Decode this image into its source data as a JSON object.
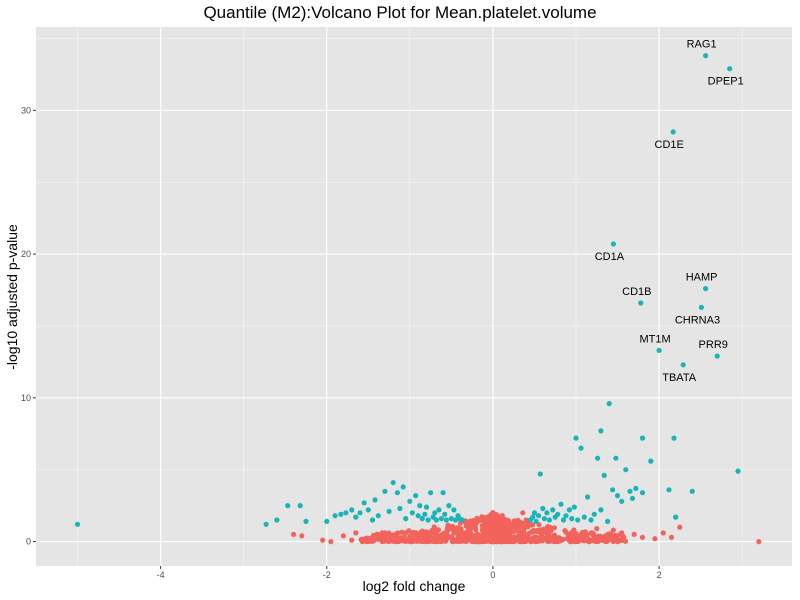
{
  "chart_data": {
    "type": "scatter",
    "title": "Quantile (M2):Volcano Plot for Mean.platelet.volume",
    "xlabel": "log2 fold change",
    "ylabel": "-log10 adjusted p-value",
    "xlim": [
      -5.5,
      3.6
    ],
    "ylim": [
      -1.7,
      35.8
    ],
    "x_ticks": [
      -4,
      -2,
      0,
      2
    ],
    "y_ticks": [
      0,
      10,
      20,
      30
    ],
    "grid": true,
    "legend": "none",
    "colors": {
      "significant": "#1ab4b8",
      "not_significant": "#f2635c",
      "panel_bg": "#e5e5e5",
      "grid": "#ffffff"
    },
    "labeled_points": [
      {
        "label": "RAG1",
        "x": 2.56,
        "y": 33.8,
        "label_pos": "above"
      },
      {
        "label": "DPEP1",
        "x": 2.85,
        "y": 32.9,
        "label_pos": "below"
      },
      {
        "label": "CD1E",
        "x": 2.17,
        "y": 28.5,
        "label_pos": "below"
      },
      {
        "label": "CD1A",
        "x": 1.45,
        "y": 20.7,
        "label_pos": "below"
      },
      {
        "label": "HAMP",
        "x": 2.56,
        "y": 17.6,
        "label_pos": "above"
      },
      {
        "label": "CD1B",
        "x": 1.78,
        "y": 16.6,
        "label_pos": "above"
      },
      {
        "label": "CHRNA3",
        "x": 2.51,
        "y": 16.3,
        "label_pos": "below"
      },
      {
        "label": "MT1M",
        "x": 2.0,
        "y": 13.3,
        "label_pos": "above"
      },
      {
        "label": "PRR9",
        "x": 2.7,
        "y": 12.9,
        "label_pos": "above"
      },
      {
        "label": "TBATA",
        "x": 2.29,
        "y": 12.3,
        "label_pos": "below"
      }
    ],
    "significant_points": [
      [
        -5.0,
        1.2
      ],
      [
        -2.73,
        1.2
      ],
      [
        -2.6,
        1.5
      ],
      [
        -2.47,
        2.5
      ],
      [
        -2.32,
        2.5
      ],
      [
        -2.25,
        1.4
      ],
      [
        -2.0,
        1.4
      ],
      [
        -1.9,
        1.8
      ],
      [
        -1.83,
        1.9
      ],
      [
        -1.77,
        2.0
      ],
      [
        -1.7,
        2.2
      ],
      [
        -1.65,
        1.7
      ],
      [
        -1.6,
        2.0
      ],
      [
        -1.55,
        2.7
      ],
      [
        -1.5,
        2.2
      ],
      [
        -1.45,
        1.5
      ],
      [
        -1.42,
        2.9
      ],
      [
        -1.38,
        1.8
      ],
      [
        -1.3,
        3.5
      ],
      [
        -1.25,
        2.1
      ],
      [
        -1.2,
        4.1
      ],
      [
        -1.15,
        3.4
      ],
      [
        -1.12,
        2.3
      ],
      [
        -1.08,
        3.8
      ],
      [
        -1.05,
        1.6
      ],
      [
        -1.0,
        2.8
      ],
      [
        -0.97,
        2.0
      ],
      [
        -0.93,
        3.2
      ],
      [
        -0.9,
        1.8
      ],
      [
        -0.88,
        2.5
      ],
      [
        -0.85,
        1.6
      ],
      [
        -0.82,
        1.9
      ],
      [
        -0.8,
        2.4
      ],
      [
        -0.78,
        1.5
      ],
      [
        -0.75,
        3.4
      ],
      [
        -0.72,
        1.7
      ],
      [
        -0.7,
        2.0
      ],
      [
        -0.68,
        1.5
      ],
      [
        -0.65,
        2.2
      ],
      [
        -0.62,
        1.6
      ],
      [
        -0.6,
        3.4
      ],
      [
        -0.58,
        1.9
      ],
      [
        -0.56,
        1.5
      ],
      [
        -0.53,
        2.5
      ],
      [
        -0.5,
        1.6
      ],
      [
        -0.47,
        2.2
      ],
      [
        -0.45,
        1.5
      ],
      [
        -0.42,
        1.8
      ],
      [
        -0.4,
        1.6
      ],
      [
        -0.37,
        1.5
      ],
      [
        0.45,
        1.5
      ],
      [
        0.48,
        1.7
      ],
      [
        0.5,
        2.0
      ],
      [
        0.52,
        1.4
      ],
      [
        0.55,
        1.8
      ],
      [
        0.57,
        4.7
      ],
      [
        0.6,
        2.3
      ],
      [
        0.62,
        1.6
      ],
      [
        0.65,
        2.0
      ],
      [
        0.68,
        1.5
      ],
      [
        0.72,
        2.2
      ],
      [
        0.75,
        1.7
      ],
      [
        0.78,
        1.9
      ],
      [
        0.82,
        2.6
      ],
      [
        0.85,
        1.5
      ],
      [
        0.88,
        1.8
      ],
      [
        0.92,
        2.2
      ],
      [
        0.95,
        1.6
      ],
      [
        0.98,
        2.4
      ],
      [
        1.02,
        1.5
      ],
      [
        1.06,
        6.5
      ],
      [
        1.1,
        1.7
      ],
      [
        1.14,
        3.1
      ],
      [
        1.18,
        1.5
      ],
      [
        1.22,
        1.9
      ],
      [
        1.26,
        5.8
      ],
      [
        1.3,
        2.2
      ],
      [
        1.34,
        4.6
      ],
      [
        1.38,
        1.4
      ],
      [
        1.4,
        9.6
      ],
      [
        1.44,
        3.6
      ],
      [
        1.48,
        5.8
      ],
      [
        1.5,
        3.2
      ],
      [
        1.55,
        2.8
      ],
      [
        1.6,
        5.0
      ],
      [
        1.65,
        3.5
      ],
      [
        1.68,
        3.0
      ],
      [
        1.72,
        3.7
      ],
      [
        1.8,
        3.4
      ],
      [
        1.9,
        5.6
      ],
      [
        2.18,
        7.2
      ],
      [
        2.12,
        3.6
      ],
      [
        2.4,
        3.5
      ],
      [
        2.95,
        4.9
      ],
      [
        1.8,
        7.2
      ],
      [
        1.0,
        7.2
      ],
      [
        1.3,
        7.7
      ],
      [
        2.2,
        1.7
      ]
    ],
    "non_significant_points": [
      [
        -2.3,
        0.4
      ],
      [
        -2.4,
        0.5
      ],
      [
        -2.05,
        0.1
      ],
      [
        -1.95,
        0.0
      ],
      [
        -1.8,
        0.4
      ],
      [
        -1.7,
        0.1
      ],
      [
        -1.65,
        0.6
      ],
      [
        -0.55,
        0.9
      ],
      [
        0.4,
        1.5
      ],
      [
        0.44,
        1.3
      ],
      [
        0.36,
        2.0
      ],
      [
        0.3,
        0.9
      ],
      [
        0.72,
        0.3
      ],
      [
        0.9,
        0.2
      ],
      [
        1.1,
        0.1
      ],
      [
        1.2,
        0.5
      ],
      [
        1.35,
        0.2
      ],
      [
        1.45,
        0.8
      ],
      [
        1.7,
        0.5
      ],
      [
        1.8,
        0.3
      ],
      [
        1.95,
        0.2
      ],
      [
        2.15,
        0.3
      ],
      [
        2.25,
        1.0
      ],
      [
        3.2,
        0.0
      ],
      [
        2.05,
        0.6
      ],
      [
        1.55,
        0.6
      ],
      [
        1.25,
        0.9
      ],
      [
        0.65,
        0.6
      ]
    ],
    "core_cloud": {
      "x_extent": [
        -1.6,
        1.6
      ],
      "y_peak": 1.8
    }
  }
}
